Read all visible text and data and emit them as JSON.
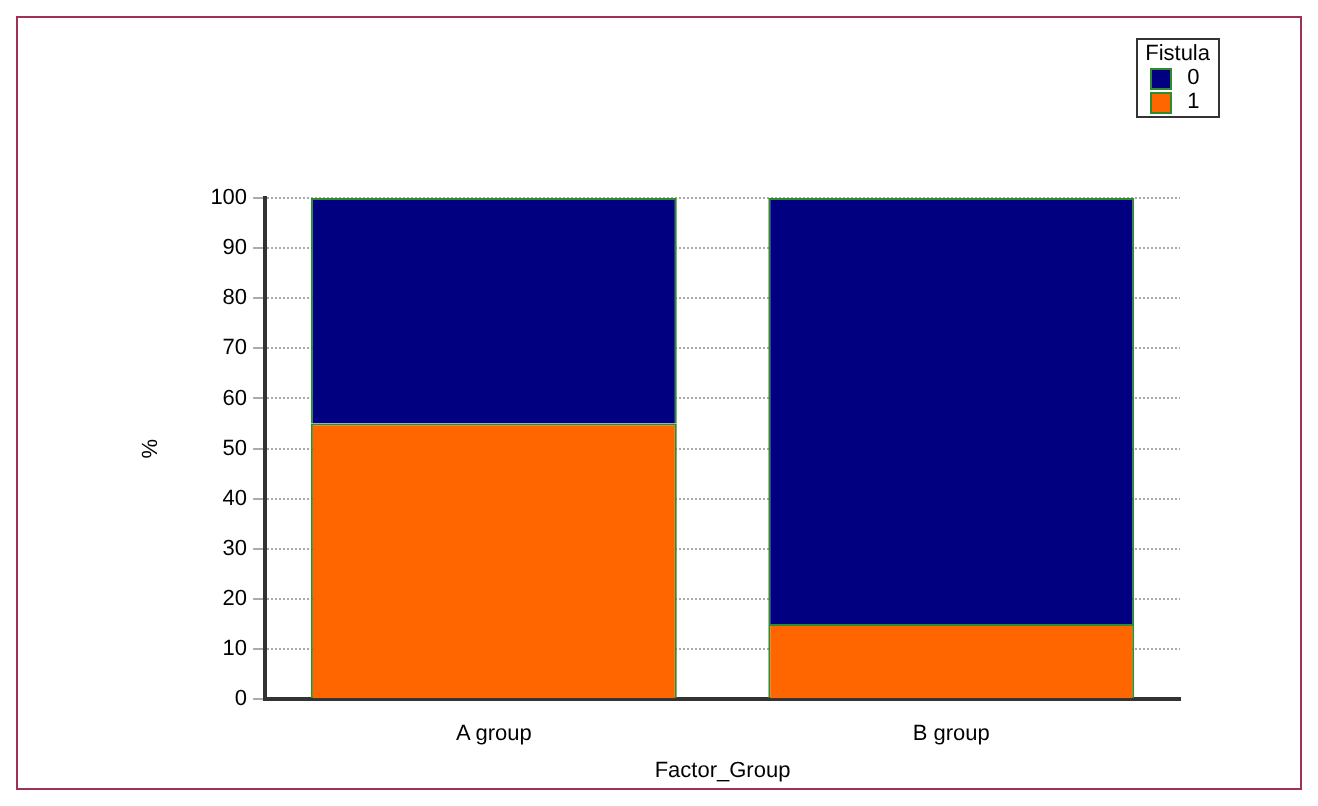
{
  "chart_data": {
    "type": "bar",
    "stacked": true,
    "categories": [
      "A group",
      "B group"
    ],
    "series": [
      {
        "name": "1",
        "color": "#ff6600",
        "values": [
          55,
          15
        ]
      },
      {
        "name": "0",
        "color": "#000080",
        "values": [
          45,
          85
        ]
      }
    ],
    "xlabel": "Factor_Group",
    "ylabel": "%",
    "legend_title": "Fistula",
    "legend": "top right",
    "ylim": [
      0,
      100
    ],
    "yticks": [
      0,
      10,
      20,
      30,
      40,
      50,
      60,
      70,
      80,
      90,
      100
    ],
    "grid": "y"
  }
}
